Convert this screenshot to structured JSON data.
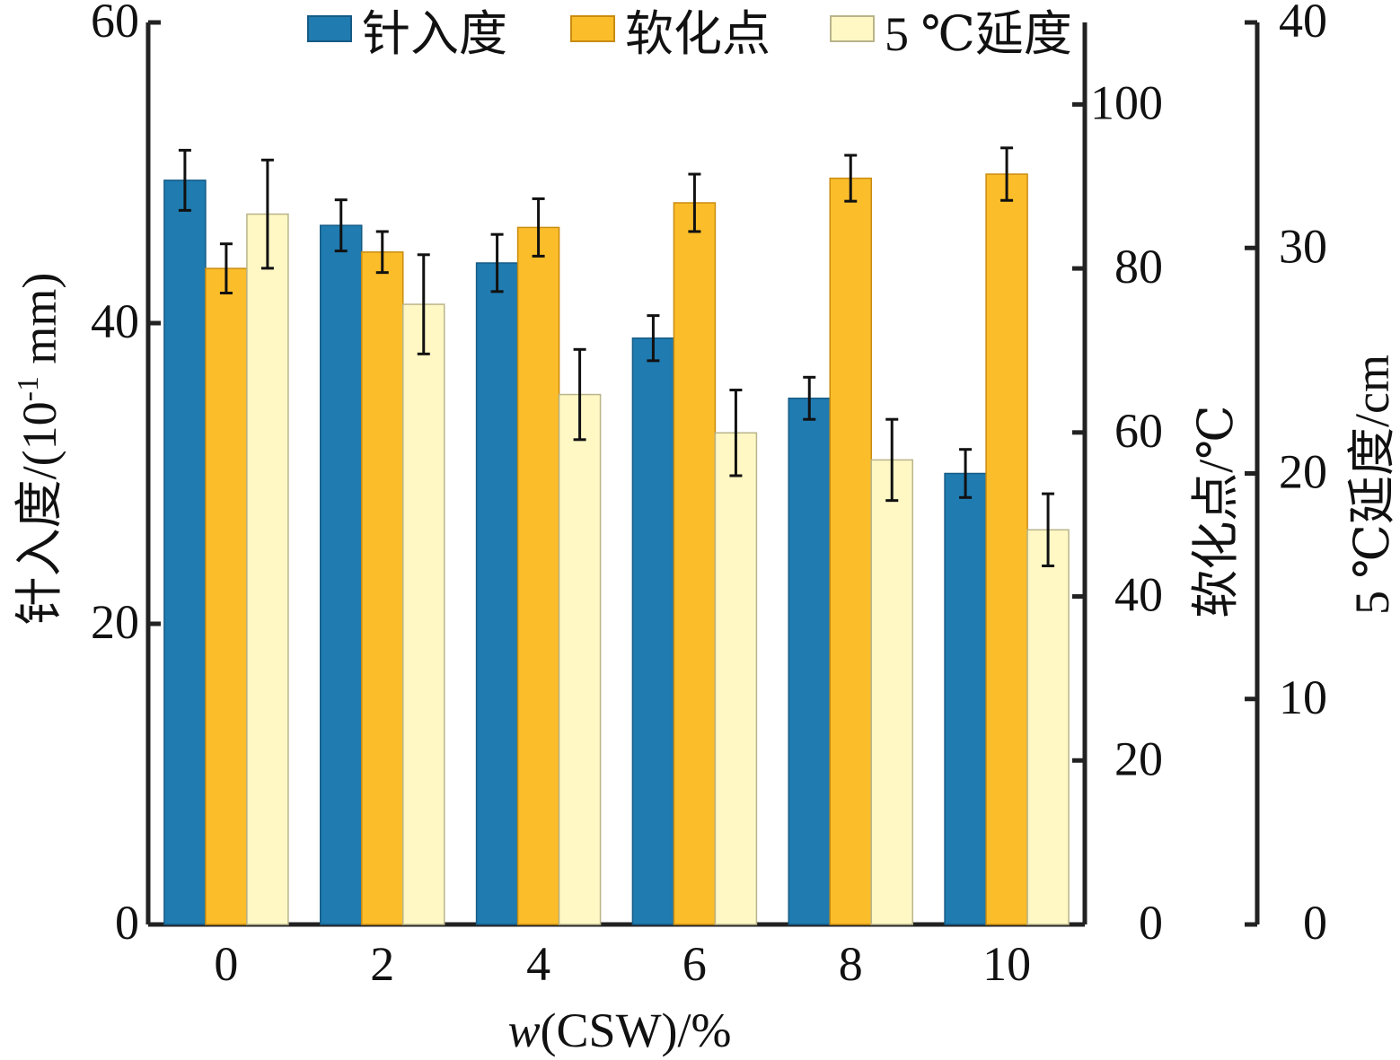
{
  "chart_data": {
    "type": "bar",
    "xlabel_italic": "w",
    "xlabel_rest": "(CSW)/%",
    "categories": [
      "0",
      "2",
      "4",
      "6",
      "8",
      "10"
    ],
    "legend": [
      "针入度",
      "软化点",
      "5 ℃延度"
    ],
    "series": [
      {
        "name": "针入度",
        "axis": "left",
        "color": "#1f7bb0",
        "values": [
          49.5,
          46.5,
          44.0,
          39.0,
          35.0,
          30.0
        ],
        "errors": [
          2.0,
          1.7,
          1.9,
          1.5,
          1.4,
          1.6
        ]
      },
      {
        "name": "软化点",
        "axis": "right1",
        "color": "#fbbd2a",
        "values": [
          80.0,
          82.0,
          85.0,
          88.0,
          91.0,
          91.5
        ],
        "errors": [
          3.0,
          2.5,
          3.5,
          3.5,
          2.8,
          3.2
        ]
      },
      {
        "name": "5 ℃延度",
        "axis": "right2",
        "color": "#fff8c5",
        "values": [
          31.5,
          27.5,
          23.5,
          21.8,
          20.6,
          17.5
        ],
        "errors": [
          2.4,
          2.2,
          2.0,
          1.9,
          1.8,
          1.6
        ]
      }
    ],
    "axes": {
      "left": {
        "label": "针入度/(10-1 mm)",
        "label_main": "针入度/(10",
        "label_sup": "-1",
        "label_end": " mm)",
        "min": 0,
        "max": 60,
        "ticks": [
          0,
          20,
          40,
          60
        ]
      },
      "right1": {
        "label": "软化点/℃",
        "min": 0,
        "max": 110,
        "ticks": [
          0,
          20,
          40,
          60,
          80,
          100
        ]
      },
      "right2": {
        "label": "5 ℃延度/cm",
        "min": 0,
        "max": 40,
        "ticks": [
          0,
          10,
          20,
          30,
          40
        ]
      }
    },
    "legend_position": "top"
  }
}
